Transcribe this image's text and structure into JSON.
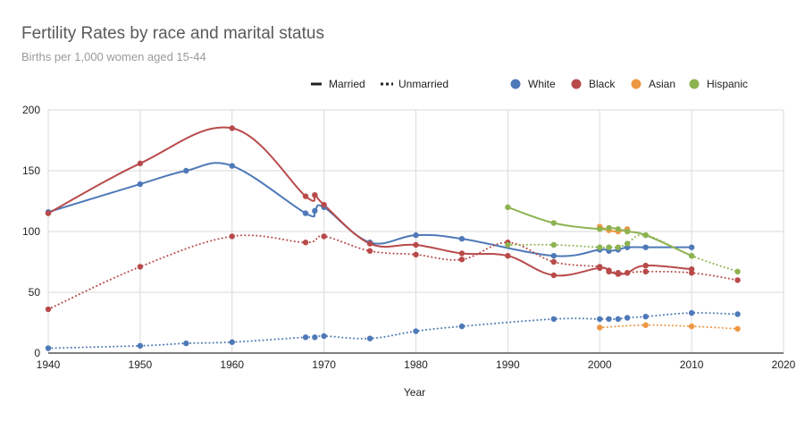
{
  "chart_data": {
    "type": "line",
    "title": "Fertility Rates by race and marital status",
    "subtitle": "Births per 1,000 women aged 15-44",
    "xlabel": "Year",
    "ylabel": "",
    "xlim": [
      1940,
      2020
    ],
    "ylim": [
      0,
      200
    ],
    "x_ticks": [
      1940,
      1950,
      1960,
      1970,
      1980,
      1990,
      2000,
      2010,
      2020
    ],
    "y_ticks": [
      0,
      50,
      100,
      150,
      200
    ],
    "grid": true,
    "legend_position": "top",
    "style_legend": [
      {
        "label": "Married",
        "dash": "solid"
      },
      {
        "label": "Unmarried",
        "dash": "dotted"
      }
    ],
    "color_legend": [
      {
        "label": "White",
        "color": "#4e79b8"
      },
      {
        "label": "Black",
        "color": "#b94a4a"
      },
      {
        "label": "Asian",
        "color": "#ee9743"
      },
      {
        "label": "Hispanic",
        "color": "#8db350"
      }
    ],
    "series": [
      {
        "group": "White",
        "status": "Married",
        "color": "#4e79b8",
        "dash": "solid",
        "points": [
          [
            1940,
            116
          ],
          [
            1950,
            139
          ],
          [
            1955,
            150
          ],
          [
            1960,
            154
          ],
          [
            1968,
            115
          ],
          [
            1969,
            117
          ],
          [
            1970,
            120
          ],
          [
            1975,
            91
          ],
          [
            1980,
            97
          ],
          [
            1985,
            94
          ],
          [
            1995,
            80
          ],
          [
            2000,
            85
          ],
          [
            2001,
            84
          ],
          [
            2002,
            85
          ],
          [
            2003,
            87
          ],
          [
            2005,
            87
          ],
          [
            2010,
            87
          ]
        ]
      },
      {
        "group": "White",
        "status": "Unmarried",
        "color": "#4e79b8",
        "dash": "dotted",
        "points": [
          [
            1940,
            4
          ],
          [
            1950,
            6
          ],
          [
            1955,
            8
          ],
          [
            1960,
            9
          ],
          [
            1968,
            13
          ],
          [
            1969,
            13
          ],
          [
            1970,
            14
          ],
          [
            1975,
            12
          ],
          [
            1980,
            18
          ],
          [
            1985,
            22
          ],
          [
            1995,
            28
          ],
          [
            2000,
            28
          ],
          [
            2001,
            28
          ],
          [
            2002,
            28
          ],
          [
            2003,
            29
          ],
          [
            2005,
            30
          ],
          [
            2010,
            33
          ],
          [
            2015,
            32
          ]
        ]
      },
      {
        "group": "Black",
        "status": "Married",
        "color": "#b94a4a",
        "dash": "solid",
        "points": [
          [
            1940,
            115
          ],
          [
            1950,
            156
          ],
          [
            1960,
            185
          ],
          [
            1968,
            129
          ],
          [
            1969,
            130
          ],
          [
            1970,
            122
          ],
          [
            1975,
            90
          ],
          [
            1980,
            89
          ],
          [
            1985,
            82
          ],
          [
            1990,
            80
          ],
          [
            1995,
            64
          ],
          [
            2000,
            70
          ],
          [
            2001,
            67
          ],
          [
            2002,
            65
          ],
          [
            2003,
            66
          ],
          [
            2005,
            72
          ],
          [
            2010,
            69
          ]
        ]
      },
      {
        "group": "Black",
        "status": "Unmarried",
        "color": "#b94a4a",
        "dash": "dotted",
        "points": [
          [
            1940,
            36
          ],
          [
            1950,
            71
          ],
          [
            1960,
            96
          ],
          [
            1968,
            91
          ],
          [
            1970,
            96
          ],
          [
            1975,
            84
          ],
          [
            1980,
            81
          ],
          [
            1985,
            77
          ],
          [
            1990,
            91
          ],
          [
            1995,
            75
          ],
          [
            2000,
            71
          ],
          [
            2001,
            68
          ],
          [
            2002,
            66
          ],
          [
            2003,
            66
          ],
          [
            2005,
            67
          ],
          [
            2010,
            66
          ],
          [
            2015,
            60
          ]
        ]
      },
      {
        "group": "Asian",
        "status": "Married",
        "color": "#ee9743",
        "dash": "solid",
        "points": [
          [
            2000,
            104
          ],
          [
            2001,
            101
          ],
          [
            2002,
            100
          ],
          [
            2003,
            102
          ]
        ]
      },
      {
        "group": "Asian",
        "status": "Unmarried",
        "color": "#ee9743",
        "dash": "dotted",
        "points": [
          [
            2000,
            21
          ],
          [
            2005,
            23
          ],
          [
            2010,
            22
          ],
          [
            2015,
            20
          ]
        ]
      },
      {
        "group": "Hispanic",
        "status": "Married",
        "color": "#8db350",
        "dash": "solid",
        "points": [
          [
            1990,
            120
          ],
          [
            1995,
            107
          ],
          [
            2000,
            102
          ],
          [
            2001,
            103
          ],
          [
            2002,
            102
          ],
          [
            2003,
            100
          ],
          [
            2005,
            97
          ],
          [
            2010,
            80
          ]
        ]
      },
      {
        "group": "Hispanic",
        "status": "Unmarried",
        "color": "#8db350",
        "dash": "dotted",
        "points": [
          [
            1990,
            89
          ],
          [
            1995,
            89
          ],
          [
            2000,
            87
          ],
          [
            2001,
            87
          ],
          [
            2002,
            87
          ],
          [
            2003,
            90
          ],
          [
            2005,
            97
          ],
          [
            2010,
            80
          ],
          [
            2015,
            67
          ]
        ]
      }
    ]
  }
}
